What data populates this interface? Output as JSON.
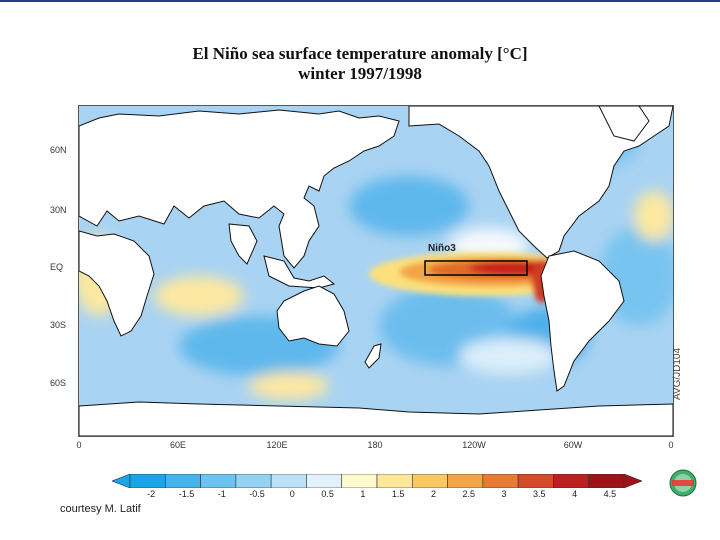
{
  "title": "El Niño sea surface temperature anomaly [°C]",
  "subtitle": "winter 1997/1998",
  "map": {
    "lat_labels": [
      "60N",
      "30N",
      "EQ",
      "30S",
      "60S"
    ],
    "lon_labels": [
      "0",
      "60E",
      "120E",
      "180",
      "120W",
      "60W",
      "0"
    ],
    "region_label": "Niño3",
    "colors": {
      "ocean_base": "#9ccbf0",
      "land": "#ffffff",
      "warm_core": "#c8221c"
    }
  },
  "colorbar": {
    "labels": [
      "-2",
      "-1.5",
      "-1",
      "-0.5",
      "0",
      "0.5",
      "1",
      "1.5",
      "2",
      "2.5",
      "3",
      "3.5",
      "4",
      "4.5"
    ],
    "colors": [
      "#1aa6e6",
      "#43b4ec",
      "#6cc3f0",
      "#94d2f3",
      "#bde1f6",
      "#e3f2fa",
      "#fffacd",
      "#fde79a",
      "#f9c863",
      "#f3a445",
      "#e97a33",
      "#d64a28",
      "#bb1f1f",
      "#9e1218"
    ]
  },
  "side_code": "AVG/JD104",
  "credit": "courtesy M. Latif",
  "logo_text": "CLIVAR"
}
